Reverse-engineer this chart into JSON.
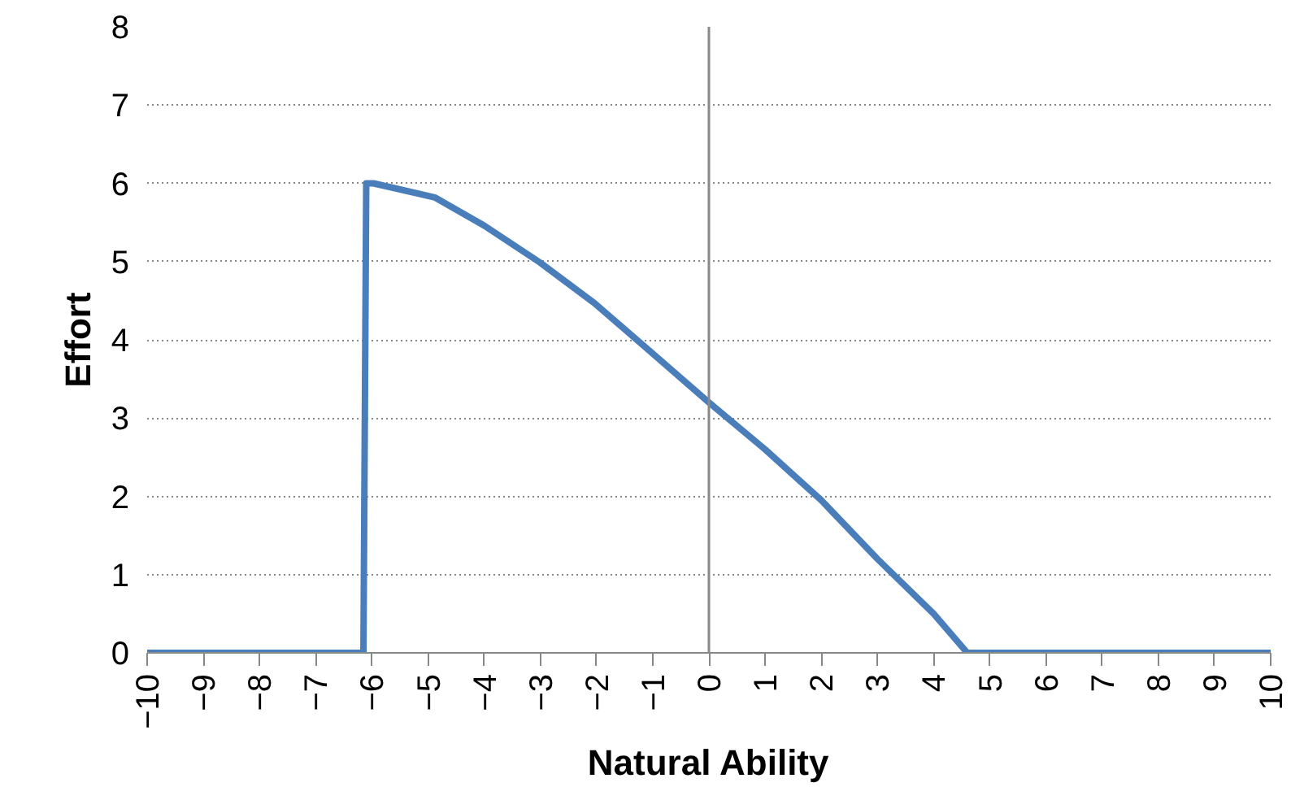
{
  "chart_data": {
    "type": "line",
    "xlabel": "Natural Ability",
    "ylabel": "Effort",
    "x": [
      -10,
      -6.15,
      -6.1,
      -5.97,
      -4.88,
      -4.0,
      -3.01,
      -2.04,
      -1.04,
      0,
      1,
      2,
      3,
      4,
      4.6,
      10
    ],
    "series": [
      {
        "color": "#4a7ebb",
        "values": [
          0,
          0,
          6.0,
          6.0,
          5.82,
          5.46,
          4.99,
          4.47,
          3.85,
          3.2,
          2.6,
          1.95,
          1.2,
          0.5,
          0,
          0
        ]
      }
    ],
    "xlim": [
      -10,
      10
    ],
    "xticks": [
      -10,
      -9,
      -8,
      -7,
      -6,
      -5,
      -4,
      -3,
      -2,
      -1,
      0,
      1,
      2,
      3,
      4,
      5,
      6,
      7,
      8,
      9,
      10
    ],
    "ylim": [
      0,
      8
    ],
    "yticks": [
      0,
      1,
      2,
      3,
      4,
      5,
      6,
      7,
      8
    ],
    "ref_lines": [
      {
        "axis": "x",
        "value": 0,
        "color": "#888888"
      }
    ],
    "grid": "y",
    "marker": "none",
    "line_style": "solid"
  }
}
